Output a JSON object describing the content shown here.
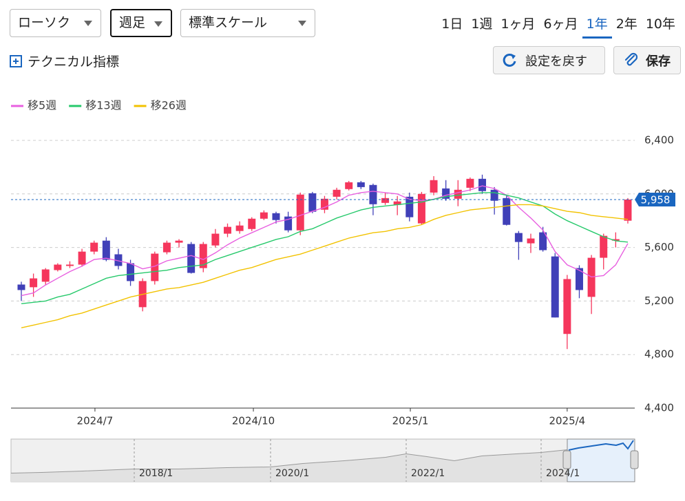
{
  "toolbar": {
    "chart_type": "ローソク",
    "interval": "週足",
    "scale": "標準スケール",
    "periods": [
      {
        "label": "1日",
        "selected": false
      },
      {
        "label": "1週",
        "selected": false
      },
      {
        "label": "1ヶ月",
        "selected": false
      },
      {
        "label": "6ヶ月",
        "selected": false
      },
      {
        "label": "1年",
        "selected": true
      },
      {
        "label": "2年",
        "selected": false
      },
      {
        "label": "10年",
        "selected": false
      }
    ],
    "technical": "テクニカル指標",
    "reset": "設定を戻す",
    "save": "保存"
  },
  "chart_data": {
    "type": "candlestick",
    "up_color": "#f5365c",
    "down_color": "#4040b8",
    "open": [
      5323,
      5303,
      5344,
      5431,
      5462,
      5472,
      5569,
      5651,
      5549,
      5482,
      5154,
      5349,
      5564,
      5636,
      5626,
      5446,
      5615,
      5703,
      5723,
      5738,
      5815,
      5856,
      5831,
      5728,
      6005,
      5882,
      5979,
      6036,
      6087,
      6067,
      5933,
      5918,
      5979,
      5780,
      6010,
      6041,
      5964,
      6046,
      6113,
      6031,
      5969,
      5708,
      5631,
      5713,
      5533,
      4954,
      5446,
      5231,
      5523,
      5651,
      5800
    ],
    "high": [
      5344,
      5405,
      5446,
      5482,
      5497,
      5590,
      5651,
      5677,
      5590,
      5508,
      5369,
      5569,
      5651,
      5662,
      5641,
      5641,
      5738,
      5779,
      5795,
      5826,
      5877,
      5867,
      5867,
      6010,
      6015,
      5985,
      6046,
      6097,
      6097,
      6077,
      6010,
      5985,
      6010,
      6015,
      6133,
      6103,
      6103,
      6123,
      6144,
      6051,
      5995,
      5723,
      5703,
      5754,
      5559,
      5395,
      5467,
      5544,
      5703,
      5713,
      5969
    ],
    "low": [
      5200,
      5231,
      5318,
      5421,
      5446,
      5456,
      5549,
      5497,
      5436,
      5313,
      5123,
      5323,
      5549,
      5600,
      5405,
      5415,
      5600,
      5677,
      5703,
      5723,
      5805,
      5779,
      5713,
      5692,
      5856,
      5856,
      5959,
      6026,
      6036,
      5841,
      5918,
      5841,
      5795,
      5769,
      5990,
      5949,
      5908,
      6021,
      6000,
      5846,
      5764,
      5508,
      5559,
      5569,
      5077,
      4841,
      5221,
      5103,
      5436,
      5600,
      5779
    ],
    "close": [
      5282,
      5369,
      5436,
      5472,
      5472,
      5569,
      5636,
      5508,
      5462,
      5349,
      5349,
      5554,
      5636,
      5651,
      5410,
      5626,
      5703,
      5754,
      5764,
      5815,
      5862,
      5805,
      5728,
      5995,
      5867,
      5964,
      6031,
      6087,
      6051,
      5923,
      5969,
      5944,
      5826,
      6000,
      6103,
      5964,
      6031,
      6113,
      6021,
      5949,
      5769,
      5641,
      5667,
      5580,
      5077,
      5364,
      5282,
      5523,
      5687,
      5662,
      5958
    ],
    "series": [
      {
        "name": "移5週",
        "color": "#e85fe0",
        "values": [
          5240,
          5260,
          5320,
          5370,
          5420,
          5460,
          5510,
          5520,
          5500,
          5480,
          5440,
          5460,
          5500,
          5520,
          5540,
          5510,
          5560,
          5620,
          5670,
          5710,
          5750,
          5790,
          5810,
          5840,
          5870,
          5900,
          5940,
          5990,
          6010,
          6020,
          6010,
          6000,
          5960,
          5950,
          5960,
          5990,
          6010,
          6030,
          6060,
          6040,
          5990,
          5900,
          5820,
          5730,
          5570,
          5470,
          5430,
          5380,
          5390,
          5470,
          5630
        ]
      },
      {
        "name": "移13週",
        "color": "#26c96b",
        "values": [
          5180,
          5190,
          5200,
          5230,
          5250,
          5290,
          5330,
          5370,
          5390,
          5400,
          5410,
          5420,
          5430,
          5450,
          5460,
          5470,
          5510,
          5540,
          5570,
          5600,
          5630,
          5660,
          5680,
          5720,
          5740,
          5780,
          5820,
          5850,
          5880,
          5900,
          5910,
          5920,
          5930,
          5940,
          5960,
          5980,
          5990,
          6000,
          6010,
          6010,
          5990,
          5970,
          5940,
          5910,
          5850,
          5800,
          5760,
          5720,
          5680,
          5650,
          5640
        ]
      },
      {
        "name": "移26週",
        "color": "#f2c200",
        "values": [
          5000,
          5020,
          5040,
          5060,
          5090,
          5110,
          5140,
          5170,
          5200,
          5230,
          5250,
          5270,
          5290,
          5300,
          5320,
          5340,
          5370,
          5400,
          5430,
          5450,
          5480,
          5510,
          5530,
          5550,
          5580,
          5610,
          5640,
          5670,
          5690,
          5710,
          5720,
          5740,
          5750,
          5770,
          5810,
          5840,
          5860,
          5880,
          5890,
          5900,
          5910,
          5920,
          5920,
          5910,
          5890,
          5870,
          5860,
          5840,
          5830,
          5820,
          5810
        ]
      }
    ],
    "xlim": [
      -0.85,
      50.57
    ],
    "xticks": [
      {
        "value": 6.07,
        "label": "2024/7"
      },
      {
        "value": 19.13,
        "label": "2024/10"
      },
      {
        "value": 32.07,
        "label": "2025/1"
      },
      {
        "value": 45.0,
        "label": "2025/4"
      }
    ],
    "ylim": [
      4400,
      6400
    ],
    "yticks": [
      {
        "value": 4400,
        "label": "4,400"
      },
      {
        "value": 4800,
        "label": "4,800"
      },
      {
        "value": 5200,
        "label": "5,200"
      },
      {
        "value": 5600,
        "label": "5,600"
      },
      {
        "value": 6000,
        "label": "6,000"
      },
      {
        "value": 6400,
        "label": "6,400"
      }
    ],
    "grid": true,
    "last_price": {
      "value": 5958,
      "label": "5,958"
    },
    "navigator": {
      "labels": [
        "2018/1",
        "2020/1",
        "2022/1",
        "2024/1"
      ]
    }
  }
}
